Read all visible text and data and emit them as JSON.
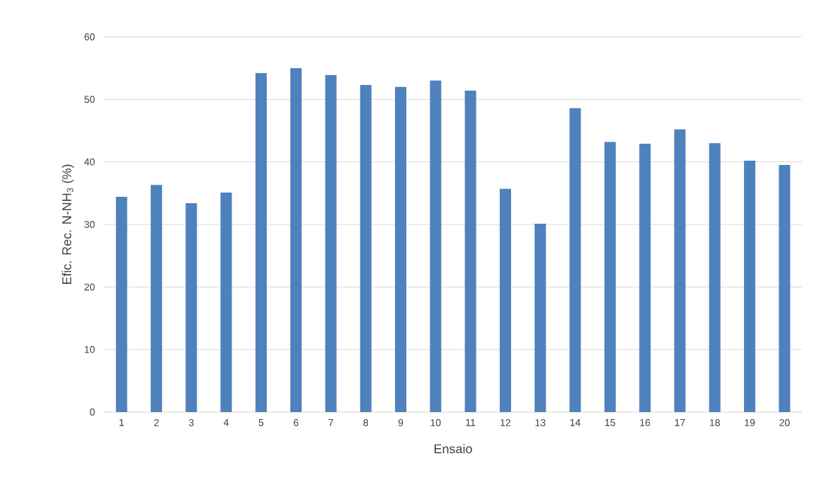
{
  "chart_data": {
    "type": "bar",
    "xlabel": "Ensaio",
    "ylabel": "Efic. Rec. N-NH$_{3}$ (%)",
    "categories": [
      "1",
      "2",
      "3",
      "4",
      "5",
      "6",
      "7",
      "8",
      "9",
      "10",
      "11",
      "12",
      "13",
      "14",
      "15",
      "16",
      "17",
      "18",
      "19",
      "20"
    ],
    "values": [
      34.4,
      36.3,
      33.4,
      35.1,
      54.2,
      55.0,
      53.9,
      52.3,
      52.0,
      53.0,
      51.4,
      35.7,
      30.1,
      48.6,
      43.2,
      42.9,
      45.2,
      43.0,
      40.2,
      39.5
    ],
    "color": "#4f81bd",
    "ylim": [
      0,
      60
    ],
    "yticks": [
      0,
      10,
      20,
      30,
      40,
      50,
      60
    ],
    "grid": "y"
  }
}
